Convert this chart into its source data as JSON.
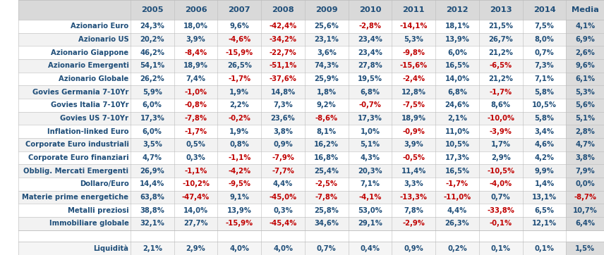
{
  "columns": [
    "",
    "2005",
    "2006",
    "2007",
    "2008",
    "2009",
    "2010",
    "2011",
    "2012",
    "2013",
    "2014",
    "Media"
  ],
  "rows": [
    {
      "label": "Azionario Euro",
      "values": [
        "24,3%",
        "18,0%",
        "9,6%",
        "-42,4%",
        "25,6%",
        "-2,8%",
        "-14,1%",
        "18,1%",
        "21,5%",
        "7,5%",
        "4,1%"
      ],
      "negatives": [
        false,
        false,
        false,
        true,
        false,
        true,
        true,
        false,
        false,
        false,
        false
      ]
    },
    {
      "label": "Azionario US",
      "values": [
        "20,2%",
        "3,9%",
        "-4,6%",
        "-34,2%",
        "23,1%",
        "23,4%",
        "5,3%",
        "13,9%",
        "26,7%",
        "8,0%",
        "6,9%"
      ],
      "negatives": [
        false,
        false,
        true,
        true,
        false,
        false,
        false,
        false,
        false,
        false,
        false
      ]
    },
    {
      "label": "Azionario Giappone",
      "values": [
        "46,2%",
        "-8,4%",
        "-15,9%",
        "-22,7%",
        "3,6%",
        "23,4%",
        "-9,8%",
        "6,0%",
        "21,2%",
        "0,7%",
        "2,6%"
      ],
      "negatives": [
        false,
        true,
        true,
        true,
        false,
        false,
        true,
        false,
        false,
        false,
        false
      ]
    },
    {
      "label": "Azionario Emergenti",
      "values": [
        "54,1%",
        "18,9%",
        "26,5%",
        "-51,1%",
        "74,3%",
        "27,8%",
        "-15,6%",
        "16,5%",
        "-6,5%",
        "7,3%",
        "9,6%"
      ],
      "negatives": [
        false,
        false,
        false,
        true,
        false,
        false,
        true,
        false,
        true,
        false,
        false
      ]
    },
    {
      "label": "Azionario Globale",
      "values": [
        "26,2%",
        "7,4%",
        "-1,7%",
        "-37,6%",
        "25,9%",
        "19,5%",
        "-2,4%",
        "14,0%",
        "21,2%",
        "7,1%",
        "6,1%"
      ],
      "negatives": [
        false,
        false,
        true,
        true,
        false,
        false,
        true,
        false,
        false,
        false,
        false
      ]
    },
    {
      "label": "Govies Germania 7-10Yr",
      "values": [
        "5,9%",
        "-1,0%",
        "1,9%",
        "14,8%",
        "1,8%",
        "6,8%",
        "12,8%",
        "6,8%",
        "-1,7%",
        "5,8%",
        "5,3%"
      ],
      "negatives": [
        false,
        true,
        false,
        false,
        false,
        false,
        false,
        false,
        true,
        false,
        false
      ]
    },
    {
      "label": "Govies Italia 7-10Yr",
      "values": [
        "6,0%",
        "-0,8%",
        "2,2%",
        "7,3%",
        "9,2%",
        "-0,7%",
        "-7,5%",
        "24,6%",
        "8,6%",
        "10,5%",
        "5,6%"
      ],
      "negatives": [
        false,
        true,
        false,
        false,
        false,
        true,
        true,
        false,
        false,
        false,
        false
      ]
    },
    {
      "label": "Govies US 7-10Yr",
      "values": [
        "17,3%",
        "-7,8%",
        "-0,2%",
        "23,6%",
        "-8,6%",
        "17,3%",
        "18,9%",
        "2,1%",
        "-10,0%",
        "5,8%",
        "5,1%"
      ],
      "negatives": [
        false,
        true,
        true,
        false,
        true,
        false,
        false,
        false,
        true,
        false,
        false
      ]
    },
    {
      "label": "Inflation-linked Euro",
      "values": [
        "6,0%",
        "-1,7%",
        "1,9%",
        "3,8%",
        "8,1%",
        "1,0%",
        "-0,9%",
        "11,0%",
        "-3,9%",
        "3,4%",
        "2,8%"
      ],
      "negatives": [
        false,
        true,
        false,
        false,
        false,
        false,
        true,
        false,
        true,
        false,
        false
      ]
    },
    {
      "label": "Corporate Euro industriali",
      "values": [
        "3,5%",
        "0,5%",
        "0,8%",
        "0,9%",
        "16,2%",
        "5,1%",
        "3,9%",
        "10,5%",
        "1,7%",
        "4,6%",
        "4,7%"
      ],
      "negatives": [
        false,
        false,
        false,
        false,
        false,
        false,
        false,
        false,
        false,
        false,
        false
      ]
    },
    {
      "label": "Corporate Euro finanziari",
      "values": [
        "4,7%",
        "0,3%",
        "-1,1%",
        "-7,9%",
        "16,8%",
        "4,3%",
        "-0,5%",
        "17,3%",
        "2,9%",
        "4,2%",
        "3,8%"
      ],
      "negatives": [
        false,
        false,
        true,
        true,
        false,
        false,
        true,
        false,
        false,
        false,
        false
      ]
    },
    {
      "label": "Obblig. Mercati Emergenti",
      "values": [
        "26,9%",
        "-1,1%",
        "-4,2%",
        "-7,7%",
        "25,4%",
        "20,3%",
        "11,4%",
        "16,5%",
        "-10,5%",
        "9,9%",
        "7,9%"
      ],
      "negatives": [
        false,
        true,
        true,
        true,
        false,
        false,
        false,
        false,
        true,
        false,
        false
      ]
    },
    {
      "label": "Dollaro/Euro",
      "values": [
        "14,4%",
        "-10,2%",
        "-9,5%",
        "4,4%",
        "-2,5%",
        "7,1%",
        "3,3%",
        "-1,7%",
        "-4,0%",
        "1,4%",
        "0,0%"
      ],
      "negatives": [
        false,
        true,
        true,
        false,
        true,
        false,
        false,
        true,
        true,
        false,
        false
      ]
    },
    {
      "label": "Materie prime energetiche",
      "values": [
        "63,8%",
        "-47,4%",
        "9,1%",
        "-45,0%",
        "-7,8%",
        "-4,1%",
        "-13,3%",
        "-11,0%",
        "0,7%",
        "13,1%",
        "-8,7%"
      ],
      "negatives": [
        false,
        true,
        false,
        true,
        true,
        true,
        true,
        true,
        false,
        false,
        true
      ]
    },
    {
      "label": "Metalli preziosi",
      "values": [
        "38,8%",
        "14,0%",
        "13,9%",
        "0,3%",
        "25,8%",
        "53,0%",
        "7,8%",
        "4,4%",
        "-33,8%",
        "6,5%",
        "10,7%"
      ],
      "negatives": [
        false,
        false,
        false,
        false,
        false,
        false,
        false,
        false,
        true,
        false,
        false
      ]
    },
    {
      "label": "Immobiliare globale",
      "values": [
        "32,1%",
        "27,7%",
        "-15,9%",
        "-45,4%",
        "34,6%",
        "29,1%",
        "-2,9%",
        "26,3%",
        "-0,1%",
        "12,1%",
        "6,4%"
      ],
      "negatives": [
        false,
        false,
        true,
        true,
        false,
        false,
        true,
        false,
        true,
        false,
        false
      ]
    },
    {
      "label": "Liquidità",
      "values": [
        "2,1%",
        "2,9%",
        "4,0%",
        "4,0%",
        "0,7%",
        "0,4%",
        "0,9%",
        "0,2%",
        "0,1%",
        "0,1%",
        "1,5%"
      ],
      "negatives": [
        false,
        false,
        false,
        false,
        false,
        false,
        false,
        false,
        false,
        false,
        false
      ],
      "is_liquidity": true
    }
  ],
  "positive_color": "#1F4E79",
  "negative_color": "#C00000",
  "header_bg": "#D9D9D9",
  "row_bg_even": "#FFFFFF",
  "row_bg_odd": "#F2F2F2",
  "media_col_bg": "#DCDCDC",
  "liquidity_bg": "#F5F5F5",
  "separator_color": "#BBBBBB",
  "label_color": "#1F4E79",
  "header_text_color": "#1F4E79",
  "font_size": 7.2,
  "header_font_size": 8.2
}
